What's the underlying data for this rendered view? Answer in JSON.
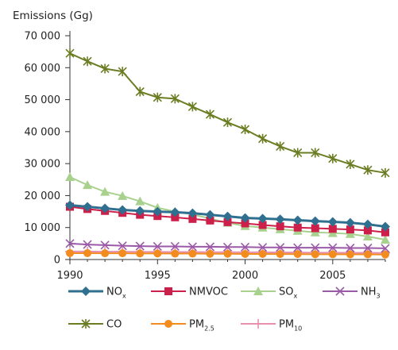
{
  "chart_data": {
    "type": "line",
    "ylabel": "Emissions (Gg)",
    "xlabel": "",
    "title": "",
    "x": [
      1990,
      1991,
      1992,
      1993,
      1994,
      1995,
      1996,
      1997,
      1998,
      1999,
      2000,
      2001,
      2002,
      2003,
      2004,
      2005,
      2006,
      2007,
      2008
    ],
    "xticks": [
      "1990",
      "1995",
      "2000",
      "2005"
    ],
    "xtick_values": [
      1990,
      1995,
      2000,
      2005
    ],
    "yticks": [
      "0",
      "10 000",
      "20 000",
      "30 000",
      "40 000",
      "50 000",
      "60 000",
      "70 000"
    ],
    "ytick_values": [
      0,
      10000,
      20000,
      30000,
      40000,
      50000,
      60000,
      70000
    ],
    "xlim": [
      1990,
      2008
    ],
    "ylim": [
      0,
      70000
    ],
    "grid": false,
    "legend_position": "bottom",
    "series": [
      {
        "name": "NOx",
        "label_main": "NO",
        "label_sub": "x",
        "color": "#2f6f8f",
        "marker": "diamond",
        "values": [
          17000,
          16500,
          16000,
          15500,
          15200,
          15000,
          14800,
          14500,
          14000,
          13500,
          13000,
          12800,
          12600,
          12300,
          12000,
          11800,
          11500,
          11000,
          10300
        ]
      },
      {
        "name": "NMVOC",
        "label_main": "NMVOC",
        "label_sub": "",
        "color": "#cc1f4a",
        "marker": "square",
        "values": [
          16500,
          15800,
          15200,
          14600,
          14000,
          13600,
          13200,
          12700,
          12200,
          11700,
          11300,
          10800,
          10400,
          10000,
          9800,
          9600,
          9400,
          9100,
          8500
        ]
      },
      {
        "name": "SOx",
        "label_main": "SO",
        "label_sub": "x",
        "color": "#a9d18e",
        "marker": "triangle",
        "values": [
          25800,
          23300,
          21200,
          19900,
          18200,
          16200,
          15000,
          14100,
          12800,
          11500,
          10500,
          10000,
          9500,
          9000,
          8500,
          8300,
          8000,
          7200,
          6200
        ]
      },
      {
        "name": "NH3",
        "label_main": "NH",
        "label_sub": "3",
        "color": "#9b5aa8",
        "marker": "x",
        "values": [
          5000,
          4700,
          4500,
          4300,
          4200,
          4100,
          4100,
          4000,
          4000,
          3900,
          3900,
          3800,
          3800,
          3700,
          3700,
          3700,
          3600,
          3600,
          3500
        ]
      },
      {
        "name": "CO",
        "label_main": "CO",
        "label_sub": "",
        "color": "#6b7d22",
        "marker": "star",
        "values": [
          64500,
          62000,
          59700,
          58800,
          52500,
          50700,
          50300,
          47800,
          45400,
          42900,
          40700,
          37800,
          35400,
          33400,
          33400,
          31600,
          29800,
          28000,
          27100
        ]
      },
      {
        "name": "PM2.5",
        "label_main": "PM",
        "label_sub": "2.5",
        "color": "#f28c1e",
        "marker": "circle",
        "values": [
          2000,
          2000,
          1950,
          1950,
          1900,
          1900,
          1850,
          1850,
          1800,
          1800,
          1750,
          1750,
          1700,
          1700,
          1650,
          1650,
          1600,
          1600,
          1550
        ]
      },
      {
        "name": "PM10",
        "label_main": "PM",
        "label_sub": "10",
        "color": "#e68fb0",
        "marker": "plus",
        "values": [
          2500,
          2500,
          2450,
          2450,
          2400,
          2400,
          2350,
          2350,
          2300,
          2300,
          2250,
          2250,
          2200,
          2200,
          2150,
          2150,
          2100,
          2100,
          2050
        ]
      }
    ]
  }
}
